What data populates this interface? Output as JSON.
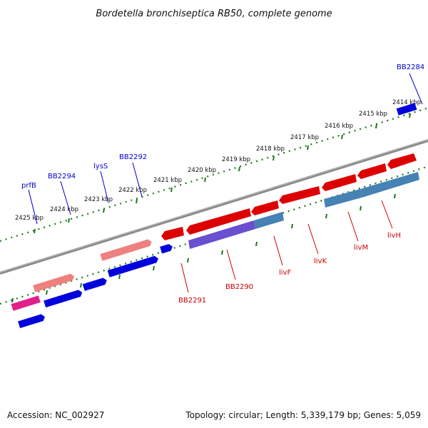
{
  "title": "Bordetella bronchiseptica RB50, complete genome",
  "footer": {
    "accession": "Accession: NC_002927",
    "summary": "Topology: circular; Length: 5,339,179 bp; Genes: 5,059"
  },
  "colors": {
    "backbone": "#808080",
    "tick": "#1a7a1a",
    "forward_gene": "#0000dd",
    "reverse_gene": "#dd0000",
    "pseudo_pink": "#ee8080",
    "purple_gene": "#6a4fd0",
    "steel_gene": "#4682b4",
    "magenta_gene": "#e0208a",
    "label_blue": "#0000cc",
    "label_red": "#cc0000"
  },
  "scale_labels": [
    "2425 kbp",
    "2424 kbp",
    "2423 kbp",
    "2422 kbp",
    "2421 kbp",
    "2420 kbp",
    "2419 kbp",
    "2418 kbp",
    "2417 kbp",
    "2416 kbp",
    "2415 kbp",
    "2414 kbp"
  ],
  "gene_labels_top": [
    "prfB",
    "BB2294",
    "lysS",
    "BB2292",
    "BB2284"
  ],
  "gene_labels_bottom": [
    "BB2291",
    "BB2290",
    "livF",
    "livK",
    "livM",
    "livH"
  ]
}
